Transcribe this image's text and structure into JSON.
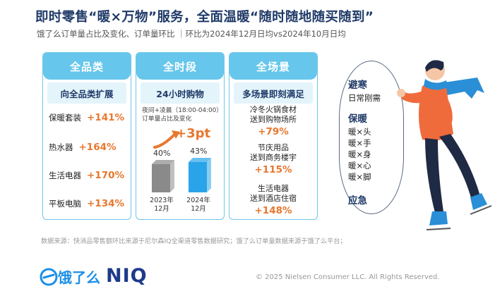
{
  "header": {
    "title": "即时零售“暖×万物”服务，全面温暖“随时随地随买随到”",
    "subtitle": "饿了么订单量占比及变化、订单量环比 ｜环比为2024年12月日均vs2024年10月日均"
  },
  "cards": {
    "category": {
      "head": "全品类",
      "sub": "向全品类扩展",
      "items": [
        {
          "name": "保暖套装",
          "value": "+141%"
        },
        {
          "name": "热水器",
          "value": "+164%"
        },
        {
          "name": "生活电器",
          "value": "+170%"
        },
        {
          "name": "平板电脑",
          "value": "+134%"
        }
      ]
    },
    "time": {
      "head": "全时段",
      "sub": "24小时购物",
      "note_line1": "夜间+凌晨（18:00-04:00）",
      "note_line2": "订单量占比及变化",
      "change": "+3pt",
      "bars": [
        {
          "label_line1": "2023年",
          "label_line2": "12月",
          "pct_label": "40%",
          "value": 40,
          "color": "#8a8a8a"
        },
        {
          "label_line1": "2024年",
          "label_line2": "12月",
          "pct_label": "43%",
          "value": 43,
          "color": "#2aa4e8"
        }
      ]
    },
    "scene": {
      "head": "全场景",
      "sub": "多场景即刻满足",
      "items": [
        {
          "line1": "冷冬火锅食材",
          "line2": "送到购物场所",
          "value": "+79%"
        },
        {
          "line1": "节庆用品",
          "line2": "送到商务楼宇",
          "value": "+115%"
        },
        {
          "line1": "生活电器",
          "line2": "送到酒店住宿",
          "value": "+148%"
        }
      ]
    }
  },
  "bubble": {
    "head1": "避寒",
    "item1": "日常刚需",
    "head2": "保暖",
    "items2": [
      "暖×头",
      "暖×手",
      "暖×身",
      "暖×心",
      "暖×脚"
    ],
    "head3": "应急"
  },
  "footer": {
    "source": "数据来源：快消品零售额环比来源于尼尔森IQ全渠道零售数据研究；饿了么订单量数据来源于饿了么平台；",
    "logo_eleme": "饿了么",
    "logo_niq": "NIQ",
    "copyright": "© 2025 Nielsen Consumer LLC. All Rights Reserved."
  },
  "colors": {
    "accent_orange": "#e8772e",
    "card_blue": "#66c6eb",
    "title_navy": "#1f3a68"
  }
}
